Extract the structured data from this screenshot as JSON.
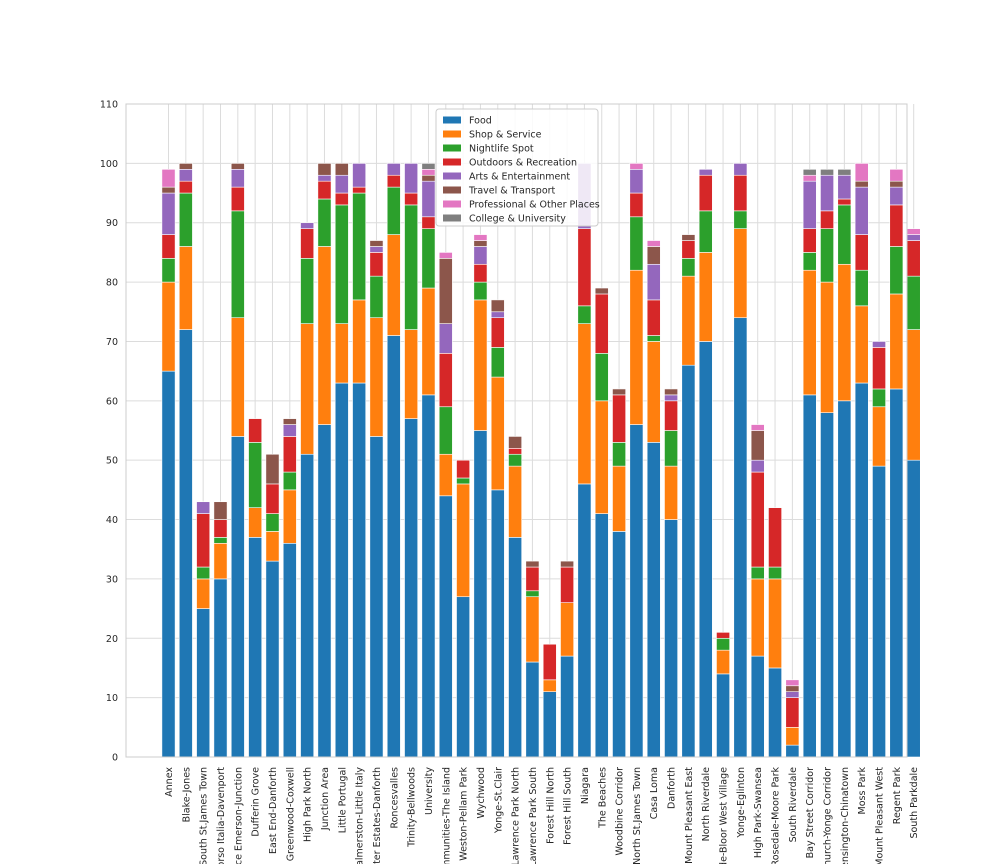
{
  "chart_data": {
    "type": "bar",
    "stacked": true,
    "grid": true,
    "legend_position": "top-center",
    "ylim": [
      0,
      110
    ],
    "yticks": [
      0,
      10,
      20,
      30,
      40,
      50,
      60,
      70,
      80,
      90,
      100,
      110
    ],
    "categories": [
      "Annex",
      "Blake-Jones",
      "South St.James Town",
      "Corso Italia-Davenport",
      "Junction Area (Dovercourt-Wallace Emerson-Junction)",
      "Dufferin Grove",
      "East End-Danforth",
      "Greenwood-Coxwell",
      "High Park North",
      "Junction Area",
      "Little Portugal",
      "Palmerston-Little Italy",
      "Playter Estates-Danforth",
      "Roncesvalles",
      "Trinity-Bellwoods",
      "University",
      "Waterfront Communities-The Island",
      "Weston-Pellam Park",
      "Wychwood",
      "Yonge-St.Clair",
      "Lawrence Park North",
      "Lawrence Park South",
      "Forest Hill North",
      "Forest Hill South",
      "Niagara",
      "The Beaches",
      "Woodbine Corridor",
      "North St.James Town",
      "Casa Loma",
      "Danforth",
      "Mount Pleasant East",
      "North Riverdale",
      "Bedford Park-Nortown / Rosedale-Bloor West Village",
      "Yonge-Eglinton",
      "High Park-Swansea",
      "Rosedale-Moore Park",
      "South Riverdale",
      "Bay Street Corridor",
      "Church-Yonge Corridor",
      "Kensington-Chinatown",
      "Moss Park",
      "Mount Pleasant West",
      "Regent Park",
      "South Parkdale"
    ],
    "tick_labels": [
      "Annex",
      "Blake-Jones",
      "South St.James Town",
      "Corso Italia-Davenport",
      "ace Emerson-Junction",
      "Dufferin Grove",
      "East End-Danforth",
      "Greenwood-Coxwell",
      "High Park North",
      "Junction Area",
      "Little Portugal",
      "Palmerston-Little Italy",
      "yter Estates-Danforth",
      "Roncesvalles",
      "Trinity-Bellwoods",
      "University",
      "mmunities-The Island",
      "Weston-Pellam Park",
      "Wychwood",
      "Yonge-St.Clair",
      "Lawrence Park North",
      "Lawrence Park South",
      "Forest Hill North",
      "Forest Hill South",
      "Niagara",
      "The Beaches",
      "Woodbine Corridor",
      "North St.James Town",
      "Casa Loma",
      "Danforth",
      "Mount Pleasant East",
      "North Riverdale",
      "de-Bloor West Village",
      "Yonge-Eglinton",
      "High Park-Swansea",
      "Rosedale-Moore Park",
      "South Riverdale",
      "Bay Street Corridor",
      "hurch-Yonge Corridor",
      "Kensington-Chinatown",
      "Moss Park",
      "Mount Pleasant West",
      "Regent Park",
      "South Parkdale"
    ],
    "series": [
      {
        "name": "Food",
        "color": "#1f77b4",
        "values": [
          65,
          72,
          25,
          30,
          54,
          37,
          33,
          36,
          51,
          56,
          63,
          63,
          54,
          71,
          57,
          61,
          44,
          27,
          55,
          45,
          37,
          16,
          11,
          17,
          46,
          41,
          38,
          56,
          53,
          40,
          66,
          70,
          14,
          74,
          17,
          15,
          2,
          61,
          58,
          60,
          63,
          49,
          62,
          50
        ]
      },
      {
        "name": "Shop & Service",
        "color": "#ff7f0e",
        "values": [
          15,
          14,
          5,
          6,
          20,
          5,
          5,
          9,
          22,
          30,
          10,
          14,
          20,
          17,
          15,
          18,
          7,
          19,
          22,
          19,
          12,
          11,
          2,
          9,
          27,
          19,
          11,
          26,
          17,
          9,
          15,
          15,
          4,
          15,
          13,
          15,
          3,
          21,
          22,
          23,
          13,
          10,
          16,
          22
        ]
      },
      {
        "name": "Nightlife Spot",
        "color": "#2ca02c",
        "values": [
          4,
          9,
          2,
          1,
          18,
          11,
          3,
          3,
          11,
          8,
          20,
          18,
          7,
          8,
          21,
          10,
          8,
          1,
          3,
          5,
          2,
          1,
          0,
          0,
          3,
          8,
          4,
          9,
          1,
          6,
          3,
          7,
          2,
          3,
          2,
          2,
          0,
          3,
          9,
          10,
          6,
          3,
          8,
          9
        ]
      },
      {
        "name": "Outdoors & Recreation",
        "color": "#d62728",
        "values": [
          4,
          2,
          9,
          3,
          4,
          4,
          5,
          6,
          5,
          3,
          2,
          1,
          4,
          2,
          2,
          2,
          9,
          3,
          3,
          5,
          1,
          4,
          6,
          6,
          13,
          10,
          8,
          4,
          6,
          5,
          3,
          6,
          1,
          6,
          16,
          10,
          5,
          4,
          3,
          1,
          6,
          7,
          7,
          6
        ]
      },
      {
        "name": "Arts & Entertainment",
        "color": "#9467bd",
        "values": [
          7,
          2,
          2,
          0,
          3,
          0,
          0,
          2,
          1,
          1,
          3,
          4,
          1,
          2,
          5,
          6,
          5,
          0,
          3,
          1,
          0,
          0,
          0,
          0,
          11,
          0,
          0,
          4,
          6,
          1,
          0,
          1,
          0,
          2,
          2,
          0,
          1,
          8,
          6,
          4,
          8,
          1,
          3,
          1
        ]
      },
      {
        "name": "Travel & Transport",
        "color": "#8c564b",
        "values": [
          1,
          1,
          0,
          3,
          1,
          0,
          5,
          1,
          0,
          2,
          2,
          0,
          1,
          0,
          0,
          1,
          11,
          0,
          1,
          2,
          2,
          1,
          0,
          1,
          0,
          1,
          1,
          0,
          3,
          1,
          1,
          0,
          0,
          0,
          5,
          0,
          1,
          0,
          0,
          0,
          1,
          0,
          1,
          0
        ]
      },
      {
        "name": "Professional & Other Places",
        "color": "#e377c2",
        "values": [
          3,
          0,
          0,
          0,
          0,
          0,
          0,
          0,
          0,
          0,
          0,
          0,
          0,
          0,
          0,
          1,
          1,
          0,
          1,
          0,
          0,
          0,
          0,
          0,
          0,
          0,
          0,
          1,
          1,
          0,
          0,
          0,
          0,
          0,
          1,
          0,
          1,
          1,
          0,
          0,
          3,
          0,
          2,
          1
        ]
      },
      {
        "name": "College & University",
        "color": "#7f7f7f",
        "values": [
          0,
          0,
          0,
          0,
          0,
          0,
          0,
          0,
          0,
          0,
          0,
          0,
          0,
          0,
          0,
          1,
          0,
          0,
          0,
          0,
          0,
          0,
          0,
          0,
          0,
          0,
          0,
          0,
          0,
          0,
          0,
          0,
          0,
          0,
          0,
          0,
          0,
          1,
          1,
          1,
          0,
          0,
          0,
          0
        ]
      }
    ]
  }
}
